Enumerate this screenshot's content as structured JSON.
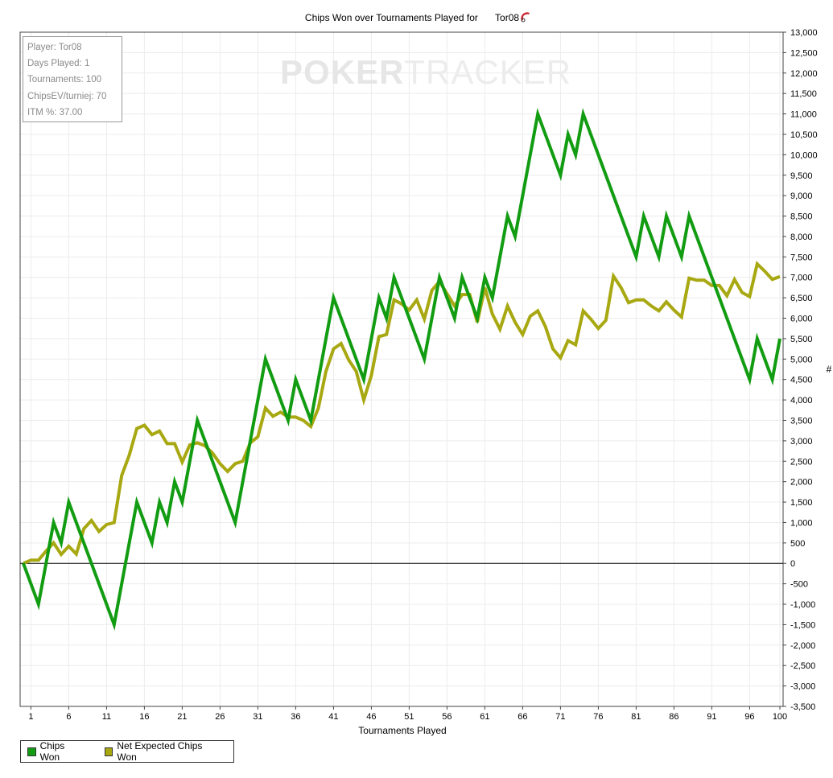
{
  "chart_data": {
    "type": "line",
    "title": "Chips Won over Tournaments Played for",
    "title_player": "Tor08",
    "xlabel": "Tournaments Played",
    "ylabel": "#",
    "xlim": [
      0,
      100
    ],
    "ylim": [
      -3500,
      13000
    ],
    "y_ticks": [
      -3500,
      -3000,
      -2500,
      -2000,
      -1500,
      -1000,
      -500,
      0,
      500,
      1000,
      1500,
      2000,
      2500,
      3000,
      3500,
      4000,
      4500,
      5000,
      5500,
      6000,
      6500,
      7000,
      7500,
      8000,
      8500,
      9000,
      9500,
      10000,
      10500,
      11000,
      11500,
      12000,
      12500,
      13000
    ],
    "x_ticks": [
      1,
      6,
      11,
      16,
      21,
      26,
      31,
      36,
      41,
      46,
      51,
      56,
      61,
      66,
      71,
      76,
      81,
      86,
      91,
      96,
      100
    ],
    "grid": true,
    "legend_position": "bottom-left",
    "series": [
      {
        "name": "Chips Won",
        "color": "#129c12",
        "points": [
          [
            0,
            0
          ],
          [
            2,
            -1000
          ],
          [
            4,
            1000
          ],
          [
            5,
            500
          ],
          [
            6,
            1500
          ],
          [
            12,
            -1500
          ],
          [
            15,
            1500
          ],
          [
            17,
            500
          ],
          [
            18,
            1500
          ],
          [
            19,
            1000
          ],
          [
            20,
            2000
          ],
          [
            21,
            1500
          ],
          [
            23,
            3500
          ],
          [
            28,
            1000
          ],
          [
            32,
            5000
          ],
          [
            35,
            3500
          ],
          [
            36,
            4500
          ],
          [
            38,
            3500
          ],
          [
            41,
            6500
          ],
          [
            45,
            4500
          ],
          [
            47,
            6500
          ],
          [
            48,
            6000
          ],
          [
            49,
            7000
          ],
          [
            53,
            5000
          ],
          [
            55,
            7000
          ],
          [
            57,
            6000
          ],
          [
            58,
            7000
          ],
          [
            60,
            6000
          ],
          [
            61,
            7000
          ],
          [
            62,
            6500
          ],
          [
            64,
            8500
          ],
          [
            65,
            8000
          ],
          [
            68,
            11000
          ],
          [
            71,
            9500
          ],
          [
            72,
            10500
          ],
          [
            73,
            10000
          ],
          [
            74,
            11000
          ],
          [
            81,
            7500
          ],
          [
            82,
            8500
          ],
          [
            84,
            7500
          ],
          [
            85,
            8500
          ],
          [
            87,
            7500
          ],
          [
            88,
            8500
          ],
          [
            96,
            4500
          ],
          [
            97,
            5500
          ],
          [
            99,
            4500
          ],
          [
            100,
            5500
          ]
        ]
      },
      {
        "name": "Net Expected Chips Won",
        "color": "#a8a812",
        "points": [
          [
            0,
            0
          ],
          [
            1,
            80
          ],
          [
            2,
            80
          ],
          [
            3,
            300
          ],
          [
            4,
            500
          ],
          [
            5,
            220
          ],
          [
            6,
            420
          ],
          [
            7,
            230
          ],
          [
            8,
            850
          ],
          [
            9,
            1050
          ],
          [
            10,
            780
          ],
          [
            11,
            950
          ],
          [
            12,
            1000
          ],
          [
            13,
            2150
          ],
          [
            14,
            2650
          ],
          [
            15,
            3300
          ],
          [
            16,
            3380
          ],
          [
            17,
            3150
          ],
          [
            18,
            3240
          ],
          [
            19,
            2930
          ],
          [
            20,
            2930
          ],
          [
            21,
            2480
          ],
          [
            22,
            2900
          ],
          [
            23,
            2950
          ],
          [
            24,
            2880
          ],
          [
            25,
            2700
          ],
          [
            26,
            2440
          ],
          [
            27,
            2250
          ],
          [
            28,
            2440
          ],
          [
            29,
            2500
          ],
          [
            30,
            2950
          ],
          [
            31,
            3100
          ],
          [
            32,
            3800
          ],
          [
            33,
            3600
          ],
          [
            34,
            3700
          ],
          [
            35,
            3580
          ],
          [
            36,
            3580
          ],
          [
            37,
            3500
          ],
          [
            38,
            3350
          ],
          [
            39,
            3800
          ],
          [
            40,
            4700
          ],
          [
            41,
            5250
          ],
          [
            42,
            5380
          ],
          [
            43,
            4980
          ],
          [
            44,
            4700
          ],
          [
            45,
            4000
          ],
          [
            46,
            4600
          ],
          [
            47,
            5550
          ],
          [
            48,
            5600
          ],
          [
            49,
            6450
          ],
          [
            50,
            6350
          ],
          [
            51,
            6200
          ],
          [
            52,
            6450
          ],
          [
            53,
            5980
          ],
          [
            54,
            6680
          ],
          [
            55,
            6900
          ],
          [
            56,
            6600
          ],
          [
            57,
            6300
          ],
          [
            58,
            6580
          ],
          [
            59,
            6580
          ],
          [
            60,
            5900
          ],
          [
            61,
            6750
          ],
          [
            62,
            6100
          ],
          [
            63,
            5730
          ],
          [
            64,
            6300
          ],
          [
            65,
            5900
          ],
          [
            66,
            5600
          ],
          [
            67,
            6050
          ],
          [
            68,
            6180
          ],
          [
            69,
            5800
          ],
          [
            70,
            5250
          ],
          [
            71,
            5030
          ],
          [
            72,
            5450
          ],
          [
            73,
            5350
          ],
          [
            74,
            6180
          ],
          [
            75,
            5980
          ],
          [
            76,
            5750
          ],
          [
            77,
            5950
          ],
          [
            78,
            7030
          ],
          [
            79,
            6750
          ],
          [
            80,
            6380
          ],
          [
            81,
            6450
          ],
          [
            82,
            6450
          ],
          [
            83,
            6300
          ],
          [
            84,
            6180
          ],
          [
            85,
            6400
          ],
          [
            86,
            6200
          ],
          [
            87,
            6030
          ],
          [
            88,
            6980
          ],
          [
            89,
            6930
          ],
          [
            90,
            6930
          ],
          [
            91,
            6800
          ],
          [
            92,
            6800
          ],
          [
            93,
            6550
          ],
          [
            94,
            6950
          ],
          [
            95,
            6630
          ],
          [
            96,
            6530
          ],
          [
            97,
            7330
          ],
          [
            98,
            7150
          ],
          [
            99,
            6950
          ],
          [
            100,
            7020
          ]
        ]
      }
    ]
  },
  "stats_box": {
    "player_label": "Player: Tor08",
    "days_label": "Days Played: 1",
    "tournaments_label": "Tournaments: 100",
    "chipsev_label": "ChipsEV/turniej: 70",
    "itm_label": "ITM %: 37.00"
  },
  "watermark": {
    "part1": "POKER",
    "part2": "TRACKER"
  },
  "legend": {
    "items": [
      {
        "label": "Chips Won",
        "color": "#129c12"
      },
      {
        "label": "Net Expected Chips Won",
        "color": "#a8a812"
      }
    ]
  },
  "colors": {
    "grid": "#ececec",
    "zero_line": "#000000",
    "frame": "#444444"
  }
}
